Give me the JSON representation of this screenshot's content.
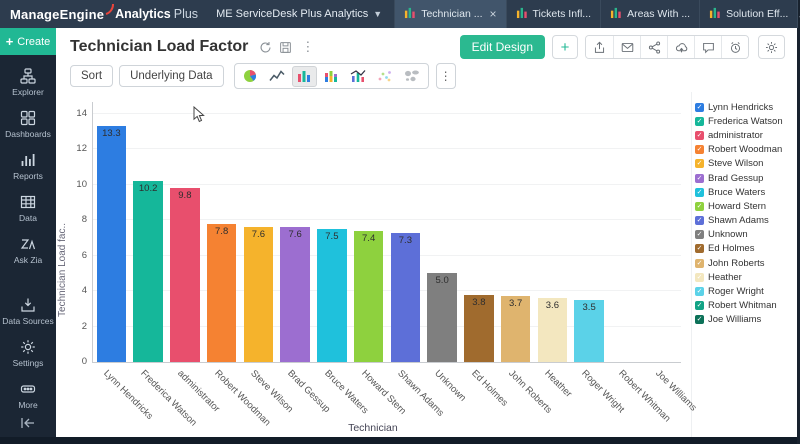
{
  "navbar": {
    "brand": {
      "company": "ManageEngine",
      "product": "Analytics",
      "suffix": "Plus"
    },
    "workspace_dropdown": "ME ServiceDesk Plus Analytics",
    "tabs": [
      {
        "label": "Technician ...",
        "active": true,
        "closable": true
      },
      {
        "label": "Tickets Infl...",
        "active": false
      },
      {
        "label": "Areas With ...",
        "active": false
      },
      {
        "label": "Solution Eff...",
        "active": false
      }
    ]
  },
  "sidebar": {
    "create_label": "Create",
    "items": [
      {
        "label": "Explorer",
        "icon": "explorer-icon"
      },
      {
        "label": "Dashboards",
        "icon": "dashboards-icon"
      },
      {
        "label": "Reports",
        "icon": "reports-icon"
      },
      {
        "label": "Data",
        "icon": "data-icon"
      },
      {
        "label": "Ask Zia",
        "icon": "ask-zia-icon"
      },
      {
        "label": "Data Sources",
        "icon": "data-sources-icon",
        "gap_before": true
      },
      {
        "label": "Settings",
        "icon": "settings-icon"
      },
      {
        "label": "More",
        "icon": "more-icon"
      }
    ]
  },
  "header": {
    "title": "Technician Load Factor",
    "edit_design_label": "Edit Design"
  },
  "toolbar": {
    "sort_label": "Sort",
    "underlying_data_label": "Underlying Data",
    "chart_types": [
      "pie",
      "line",
      "bar",
      "stacked-bar",
      "bar-line",
      "scatter",
      "map"
    ],
    "selected_chart_type": "bar",
    "actions": [
      "export",
      "email",
      "share",
      "publish",
      "comment",
      "alert"
    ]
  },
  "chart_data": {
    "type": "bar",
    "title": "Technician Load Factor",
    "xlabel": "Technician",
    "ylabel": "Technician Load fac..",
    "ylim": [
      0,
      14
    ],
    "ytick_step": 2,
    "grid": "horizontal",
    "legend_position": "right",
    "categories": [
      "Lynn Hendricks",
      "Frederica Watson",
      "administrator",
      "Robert Woodman",
      "Steve Wilson",
      "Brad Gessup",
      "Bruce Waters",
      "Howard Stern",
      "Shawn Adams",
      "Unknown",
      "Ed Holmes",
      "John Roberts",
      "Heather",
      "Roger Wright",
      "Robert Whitman",
      "Joe Williams"
    ],
    "values": [
      13.3,
      10.2,
      9.8,
      7.8,
      7.6,
      7.6,
      7.5,
      7.4,
      7.3,
      5.0,
      3.8,
      3.7,
      3.6,
      3.5,
      0,
      0
    ],
    "colors": [
      "#2d7de1",
      "#15b79a",
      "#e84f6d",
      "#f58232",
      "#f5b32c",
      "#9c6ed0",
      "#1fc1dc",
      "#8ed13e",
      "#5d6fd8",
      "#7f7f7f",
      "#a06b2e",
      "#dfb46e",
      "#f3e7bf",
      "#5bd2e8",
      "#11a385",
      "#0c7158"
    ]
  },
  "colors": {
    "accent_green": "#21b894",
    "edit_design_green": "#2bb990",
    "navbar_bg": "#2d3c4e",
    "sidebar_bg": "#1b2634",
    "active_tab_bg": "#41556b"
  }
}
